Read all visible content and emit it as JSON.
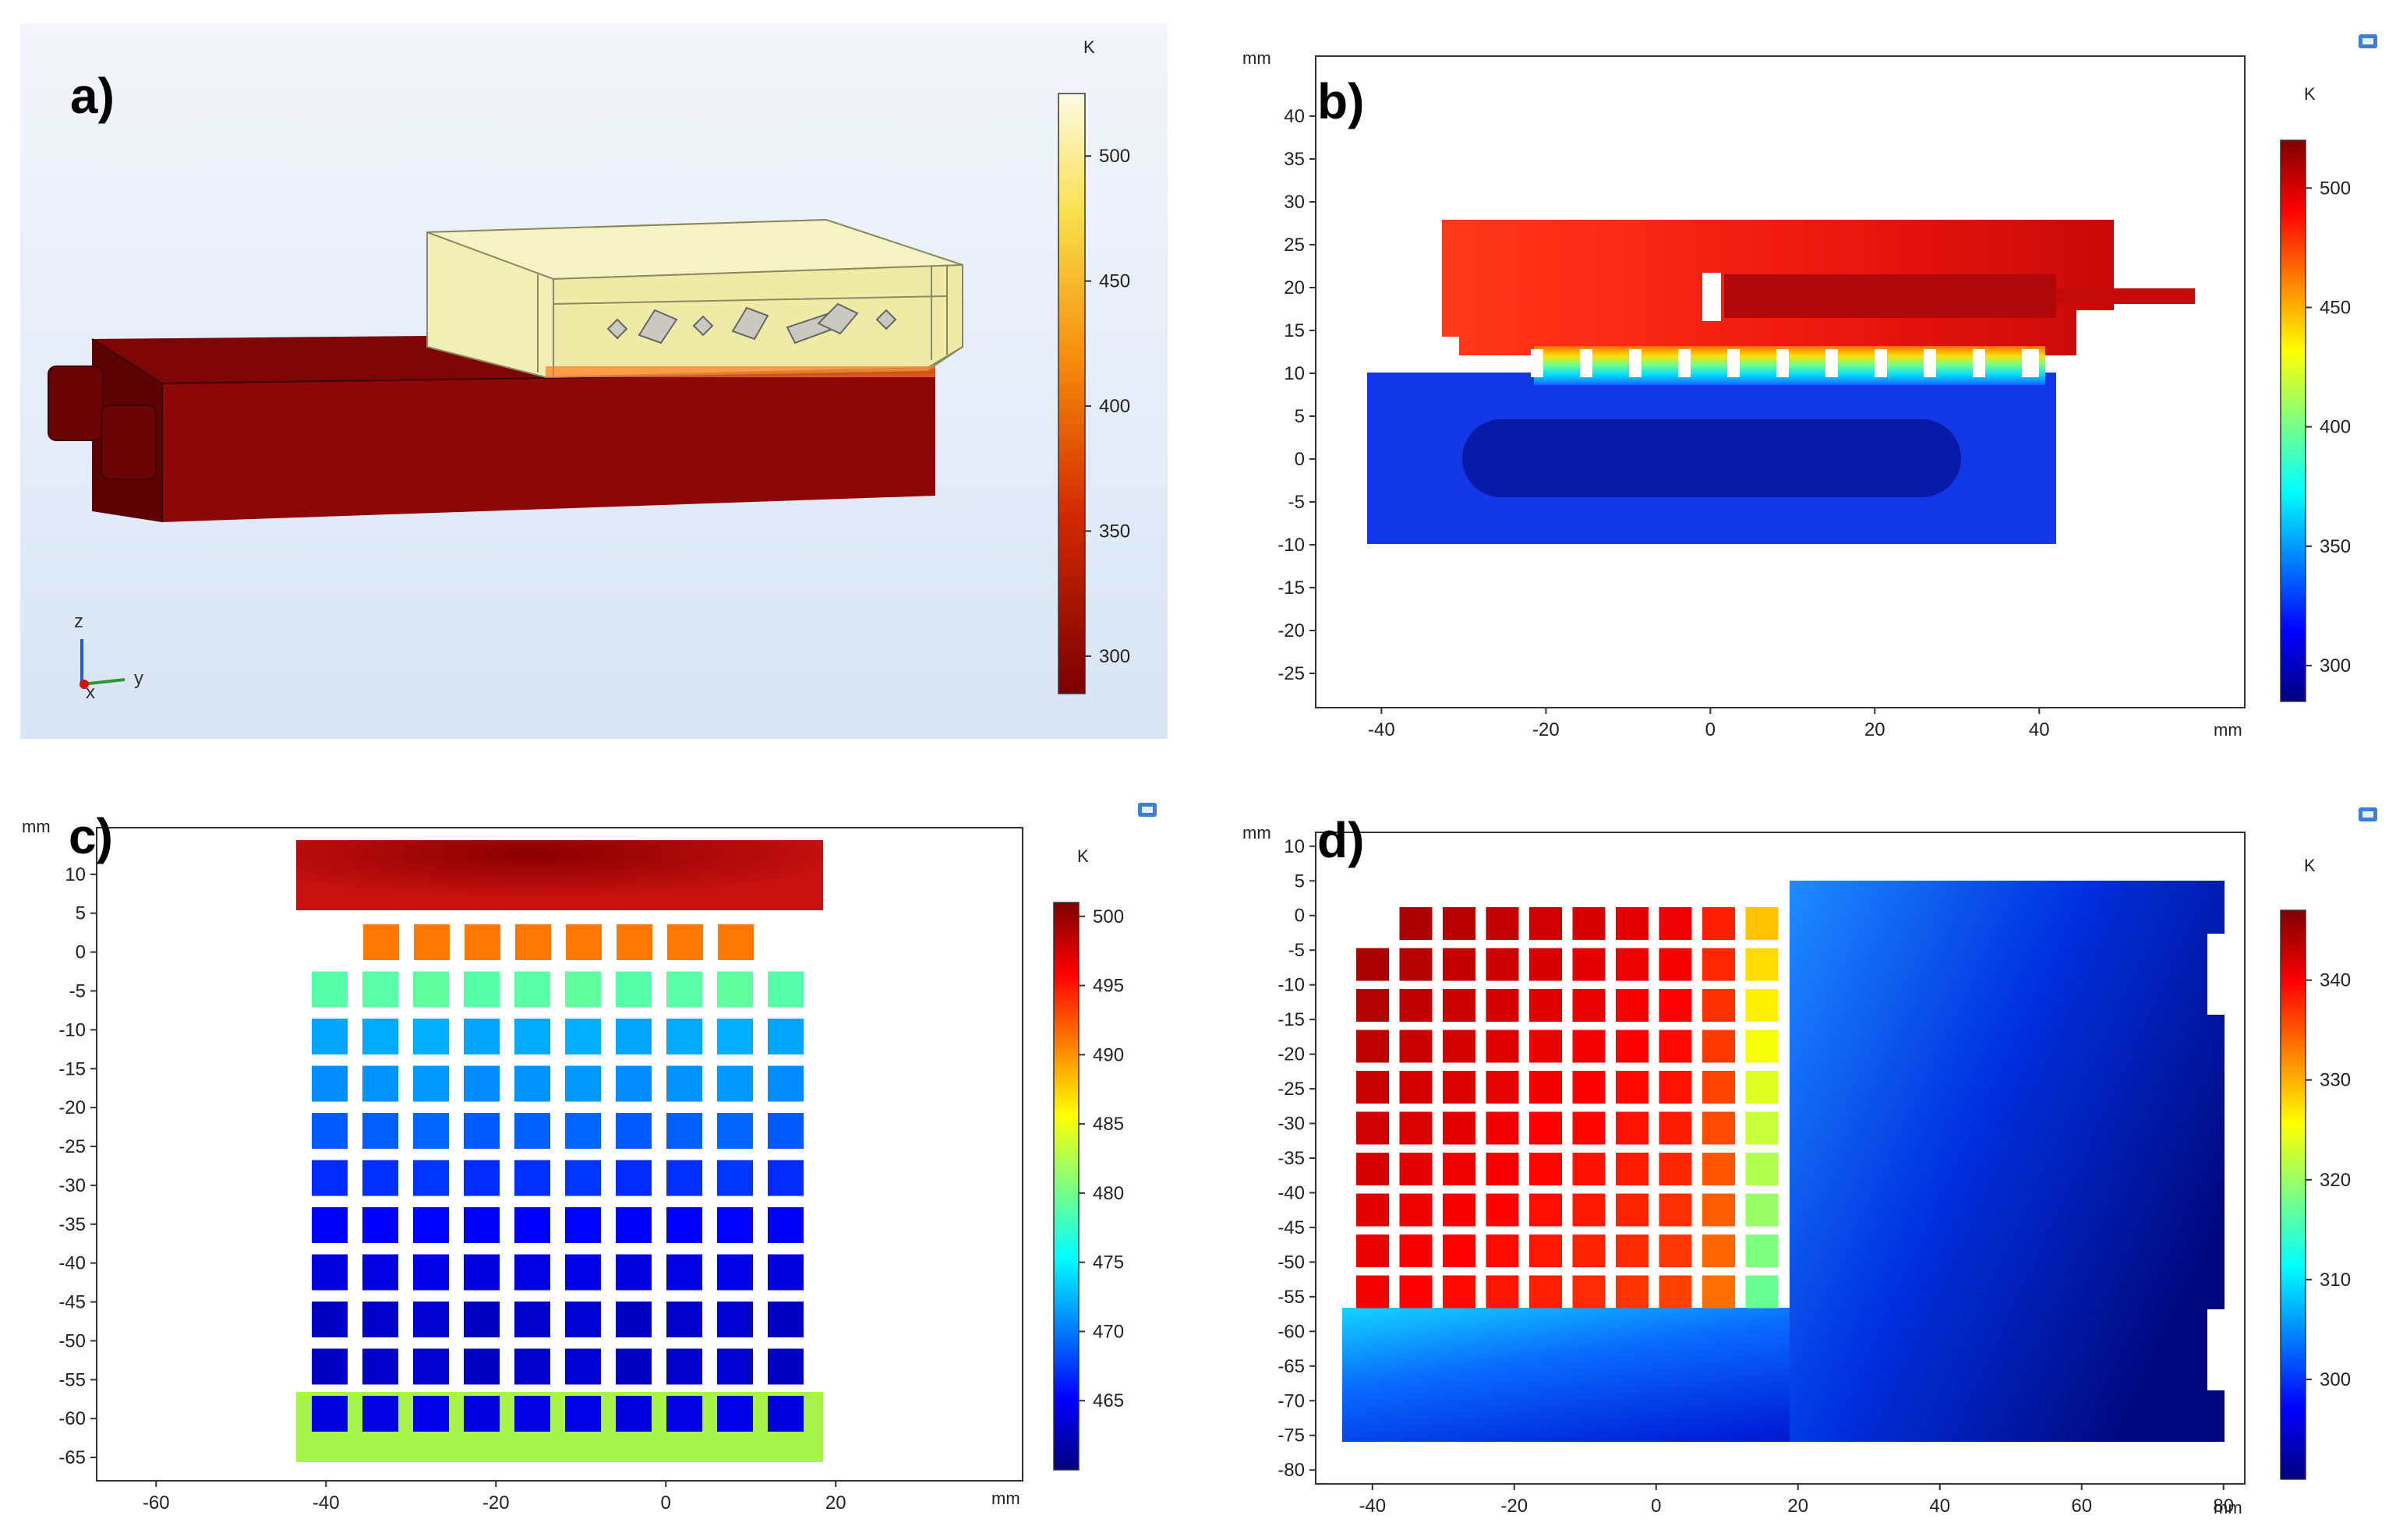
{
  "chart_data": [
    {
      "panel": "a)",
      "type": "other",
      "description_units": "K",
      "colorbar": {
        "unit": "K",
        "ticks": [
          500,
          450,
          400,
          350,
          300
        ],
        "range": [
          285,
          525
        ],
        "colormap": "heat"
      },
      "axes_triad": {
        "z": "z",
        "y": "y",
        "x": "x"
      }
    },
    {
      "panel": "b)",
      "type": "heatmap",
      "x_unit": "mm",
      "y_unit": "mm",
      "xlim": [
        -48,
        65
      ],
      "ylim": [
        -29,
        47
      ],
      "xticks": [
        -40,
        -20,
        0,
        20,
        40
      ],
      "yticks": [
        40,
        35,
        30,
        25,
        20,
        15,
        10,
        5,
        0,
        -5,
        -10,
        -15,
        -20,
        -25
      ],
      "colorbar": {
        "unit": "K",
        "ticks": [
          500,
          450,
          400,
          350,
          300
        ],
        "range": [
          285,
          520
        ],
        "colormap": "jet"
      }
    },
    {
      "panel": "c)",
      "type": "heatmap",
      "x_unit": "mm",
      "y_unit": "mm",
      "xlim": [
        -67,
        42
      ],
      "ylim": [
        -68,
        16
      ],
      "xticks": [
        -60,
        -40,
        -20,
        0,
        20
      ],
      "yticks": [
        10,
        5,
        0,
        -5,
        -10,
        -15,
        -20,
        -25,
        -30,
        -35,
        -40,
        -45,
        -50,
        -55,
        -60,
        -65
      ],
      "colorbar": {
        "unit": "K",
        "ticks": [
          500,
          495,
          490,
          485,
          480,
          475,
          470,
          465
        ],
        "range": [
          460,
          501
        ],
        "colormap": "jet"
      },
      "row_values_K": [
        491,
        479,
        472,
        471,
        469,
        467,
        465,
        464,
        463,
        463,
        464
      ],
      "top_block_K": 499,
      "bottom_block_K": 481
    },
    {
      "panel": "d)",
      "type": "heatmap",
      "x_unit": "mm",
      "y_unit": "mm",
      "xlim": [
        -48,
        83
      ],
      "ylim": [
        -82,
        12
      ],
      "xticks": [
        -40,
        -20,
        0,
        20,
        40,
        60,
        80
      ],
      "yticks": [
        10,
        5,
        0,
        -5,
        -10,
        -15,
        -20,
        -25,
        -30,
        -35,
        -40,
        -45,
        -50,
        -55,
        -60,
        -65,
        -70,
        -75,
        -80
      ],
      "colorbar": {
        "unit": "K",
        "ticks": [
          340,
          330,
          320,
          310,
          300
        ],
        "range": [
          290,
          347
        ],
        "colormap": "jet"
      }
    }
  ],
  "labels": {
    "a": "a)",
    "b": "b)",
    "c": "c)",
    "d": "d)",
    "mm": "mm",
    "K": "K",
    "z": "z",
    "y": "y",
    "x": "x"
  },
  "colors": {
    "panel_a_bg": "#dfe9f7",
    "dark_red": "#8b0000",
    "pale_yellow": "#f1efb1"
  }
}
